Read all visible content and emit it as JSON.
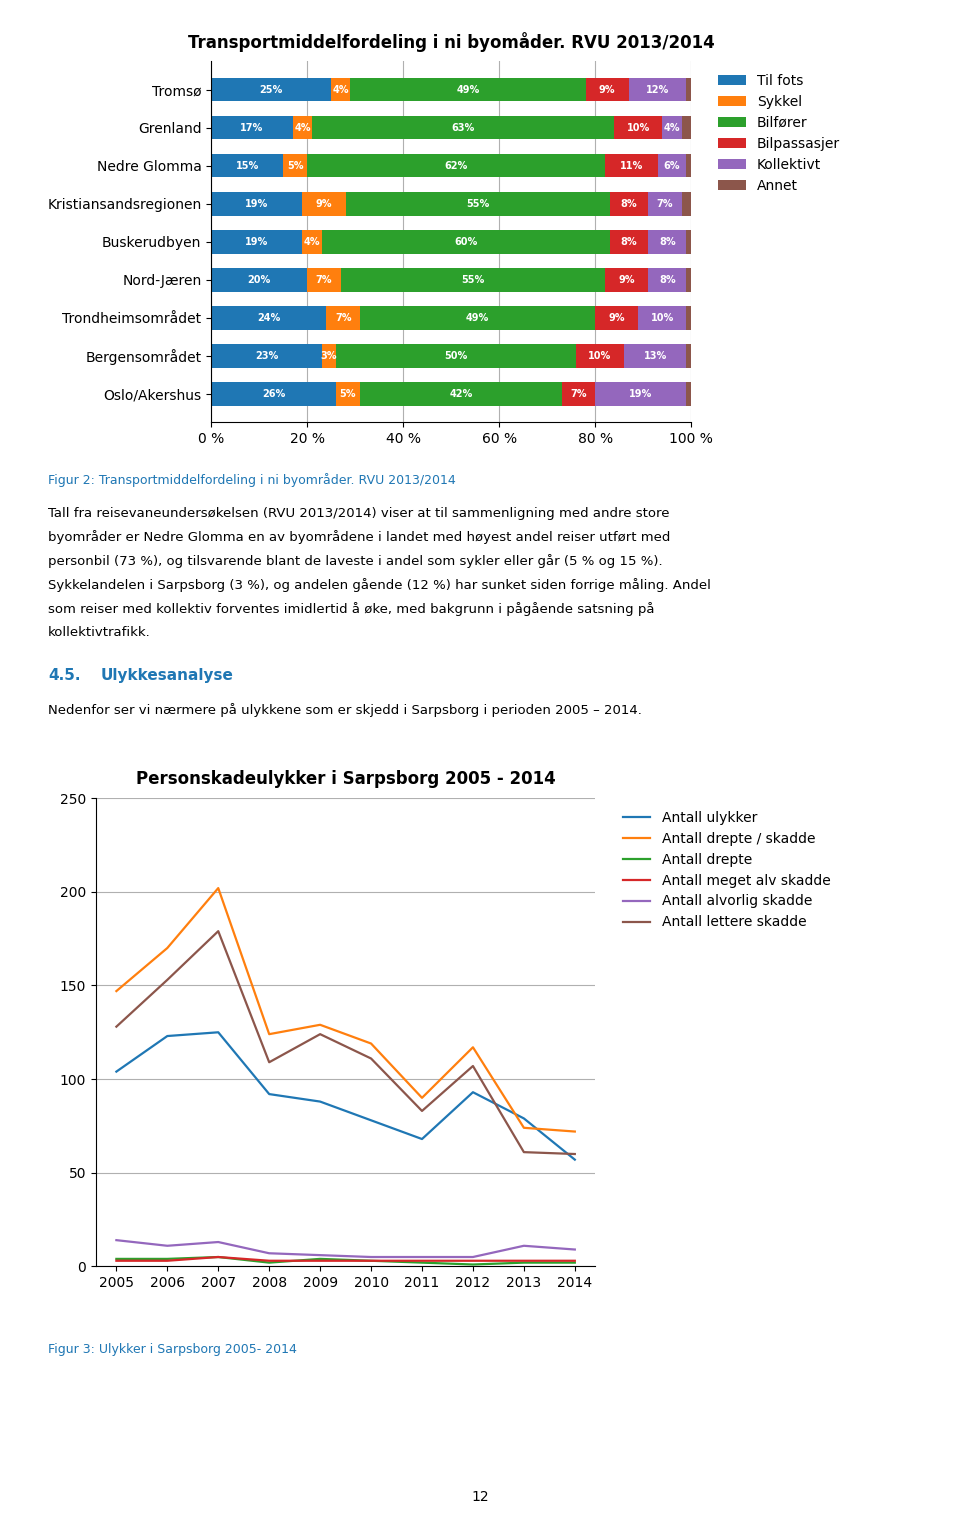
{
  "chart_data": [
    {
      "type": "bar",
      "title": "Transportmiddelfordeling i ni byomåder. RVU 2013/2014",
      "orientation": "horizontal",
      "stacked": true,
      "data_labels": true,
      "grid": true,
      "legend": "upper left",
      "categories": [
        "Tromsø",
        "Grenland",
        "Nedre Glomma",
        "Kristiansandsregionen",
        "Buskerudbyen",
        "Nord-Jæren",
        "Trondheimsområdet",
        "Bergensområdet",
        "Oslo/Akershus"
      ],
      "series": [
        {
          "name": "Til fots",
          "values": [
            25,
            17,
            15,
            19,
            19,
            20,
            24,
            23,
            26
          ],
          "value_labels": [
            "25%",
            "17%",
            "15%",
            "19%",
            "19%",
            "20%",
            "24%",
            "23%",
            "26%"
          ]
        },
        {
          "name": "Sykkel",
          "values": [
            4,
            4,
            5,
            9,
            4,
            7,
            7,
            3,
            5
          ],
          "value_labels": [
            "4%",
            "4%",
            "5%",
            "9%",
            "4%",
            "7%",
            "7%",
            "3%",
            "5%"
          ]
        },
        {
          "name": "Bilfører",
          "values": [
            49,
            63,
            62,
            55,
            60,
            55,
            49,
            50,
            42
          ],
          "value_labels": [
            "49%",
            "63%",
            "62%",
            "55%",
            "60%",
            "55%",
            "49%",
            "50%",
            "42%"
          ]
        },
        {
          "name": "Bilpassasjer",
          "values": [
            9,
            10,
            11,
            8,
            8,
            9,
            9,
            10,
            7
          ],
          "value_labels": [
            "9%",
            "10%",
            "11%",
            "8%",
            "8%",
            "9%",
            "9%",
            "10%",
            "7%"
          ]
        },
        {
          "name": "Kollektivt",
          "values": [
            12,
            4,
            6,
            7,
            8,
            8,
            10,
            13,
            19
          ],
          "value_labels": [
            "12%",
            "4%",
            "6%",
            "7%",
            "8%",
            "8%",
            "10%",
            "13%",
            "19%"
          ]
        },
        {
          "name": "Annet",
          "values": [
            1,
            2,
            1,
            2,
            1,
            1,
            1,
            1,
            1
          ],
          "value_labels": [
            null,
            null,
            null,
            null,
            null,
            null,
            null,
            null,
            null
          ]
        }
      ],
      "xlim": [
        0,
        100
      ],
      "xticks": [
        {
          "value": 0,
          "label": "0 %"
        },
        {
          "value": 20,
          "label": "20 %"
        },
        {
          "value": 40,
          "label": "40 %"
        },
        {
          "value": 60,
          "label": "60 %"
        },
        {
          "value": 80,
          "label": "80 %"
        },
        {
          "value": 100,
          "label": "100 %"
        }
      ],
      "caption": "Figur 2: Transportmiddelfordeling i ni byområder. RVU 2013/2014",
      "annotations": [
        "Tall fra reisevaneundersøkelsen (RVU 2013/2014) viser at til sammenligning med andre store",
        "byområder er Nedre Glomma en av byområdene i landet med høyest andel reiser utført med",
        "personbil (73 %), og tilsvarende blant de laveste i andel som sykler eller går (5 % og 15 %).",
        "Sykkelandelen i Sarpsborg (3 %), og andelen gående (12 %) har sunket siden forrige måling. Andel",
        "som reiser med kollektiv forventes imidlertid å øke, med bakgrunn i pågående satsning på",
        "kollektivtrafikk."
      ],
      "section_number": "4.5.",
      "section_title": "Ulykkesanalyse",
      "section_body": "Nedenfor ser vi nærmere på ulykkene som er skjedd i Sarpsborg i perioden 2005 – 2014."
    },
    {
      "type": "line",
      "title": "Personskadeulykker i Sarpsborg 2005 - 2014",
      "grid": true,
      "legend": "upper left",
      "x": [
        2005,
        2006,
        2007,
        2008,
        2009,
        2010,
        2011,
        2012,
        2013,
        2014
      ],
      "series": [
        {
          "name": "Antall ulykker",
          "values": [
            104,
            123,
            125,
            92,
            88,
            78,
            68,
            93,
            79,
            57
          ]
        },
        {
          "name": "Antall drepte / skadde",
          "values": [
            147,
            170,
            202,
            124,
            129,
            119,
            90,
            117,
            74,
            72
          ]
        },
        {
          "name": "Antall drepte",
          "values": [
            4,
            4,
            5,
            2,
            4,
            3,
            2,
            1,
            2,
            2
          ]
        },
        {
          "name": "Antall meget alv skadde",
          "values": [
            3,
            3,
            5,
            3,
            3,
            3,
            3,
            3,
            3,
            3
          ]
        },
        {
          "name": "Antall alvorlig skadde",
          "values": [
            14,
            11,
            13,
            7,
            6,
            5,
            5,
            5,
            11,
            9
          ]
        },
        {
          "name": "Antall lettere skadde",
          "values": [
            128,
            153,
            179,
            109,
            124,
            111,
            83,
            107,
            61,
            60
          ]
        }
      ],
      "xlim": [
        2004.6,
        2014.4
      ],
      "xticks": [
        2005,
        2006,
        2007,
        2008,
        2009,
        2010,
        2011,
        2012,
        2013,
        2014
      ],
      "ylim": [
        0,
        250
      ],
      "yticks": [
        0,
        50,
        100,
        150,
        200,
        250
      ],
      "caption": "Figur 3: Ulykker i Sarpsborg 2005- 2014",
      "page_number": "12"
    }
  ]
}
